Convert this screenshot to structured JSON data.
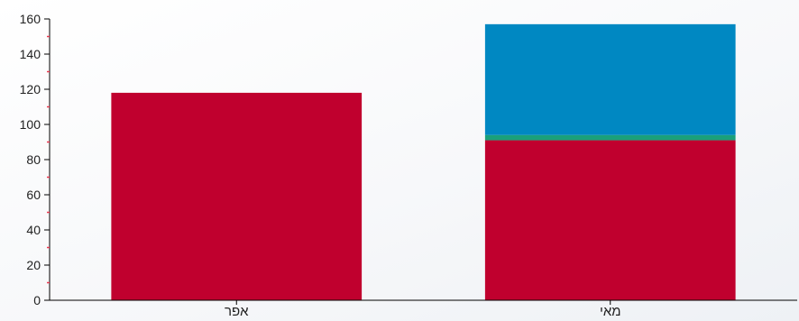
{
  "chart_data": {
    "type": "bar",
    "stacked": true,
    "categories": [
      "אפר",
      "מאי"
    ],
    "series": [
      {
        "color": "#c0002e",
        "values": [
          118,
          91
        ]
      },
      {
        "color": "#1aa07a",
        "values": [
          0,
          3
        ]
      },
      {
        "color": "#0088c2",
        "values": [
          0,
          63
        ]
      }
    ],
    "ylim": [
      0,
      160
    ],
    "yticks": [
      0,
      20,
      40,
      60,
      80,
      100,
      120,
      140,
      160
    ],
    "grid": false,
    "colors": {
      "axis": "#000000",
      "minor_tick": "#e8384f"
    }
  }
}
